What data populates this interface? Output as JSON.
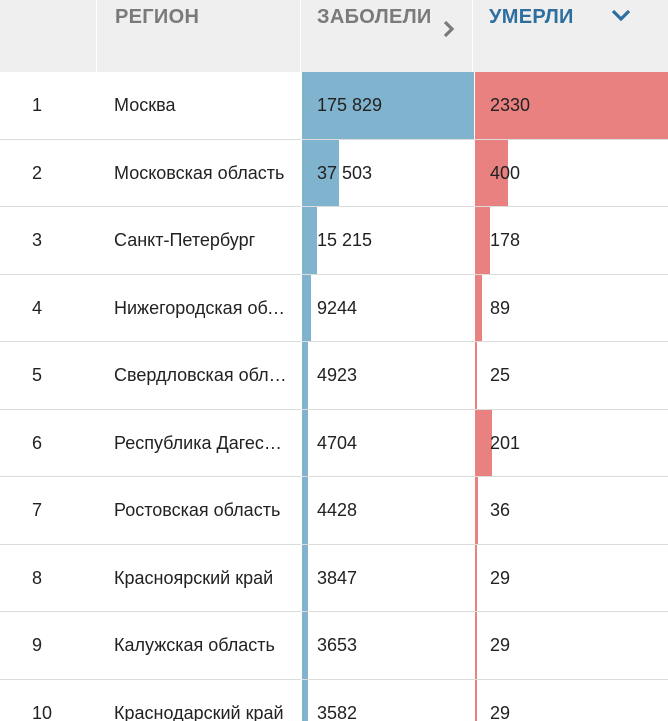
{
  "colors": {
    "cases_bar": "#80b3cd",
    "deaths_bar": "#e88180",
    "active_header": "#2e6fa0",
    "header_bg": "#efefef"
  },
  "header": {
    "region_label": "РЕГИОН",
    "cases_label": "ЗАБОЛЕЛИ",
    "deaths_label": "УМЕРЛИ",
    "cases_icon": "chevron-right-icon",
    "deaths_icon": "chevron-down-icon"
  },
  "rows": [
    {
      "rank": "1",
      "region": "Москва",
      "cases": "175 829",
      "deaths": "2330",
      "cases_value": 175829,
      "deaths_value": 2330
    },
    {
      "rank": "2",
      "region": "Московская область",
      "cases": "37 503",
      "deaths": "400",
      "cases_value": 37503,
      "deaths_value": 400
    },
    {
      "rank": "3",
      "region": "Санкт-Петербург",
      "cases": "15 215",
      "deaths": "178",
      "cases_value": 15215,
      "deaths_value": 178
    },
    {
      "rank": "4",
      "region": "Нижегородская область",
      "cases": "9244",
      "deaths": "89",
      "cases_value": 9244,
      "deaths_value": 89
    },
    {
      "rank": "5",
      "region": "Свердловская область",
      "cases": "4923",
      "deaths": "25",
      "cases_value": 4923,
      "deaths_value": 25
    },
    {
      "rank": "6",
      "region": "Республика Дагестан",
      "cases": "4704",
      "deaths": "201",
      "cases_value": 4704,
      "deaths_value": 201
    },
    {
      "rank": "7",
      "region": "Ростовская область",
      "cases": "4428",
      "deaths": "36",
      "cases_value": 4428,
      "deaths_value": 36
    },
    {
      "rank": "8",
      "region": "Красноярский край",
      "cases": "3847",
      "deaths": "29",
      "cases_value": 3847,
      "deaths_value": 29
    },
    {
      "rank": "9",
      "region": "Калужская область",
      "cases": "3653",
      "deaths": "29",
      "cases_value": 3653,
      "deaths_value": 29
    },
    {
      "rank": "10",
      "region": "Краснодарский край",
      "cases": "3582",
      "deaths": "29",
      "cases_value": 3582,
      "deaths_value": 29
    }
  ]
}
